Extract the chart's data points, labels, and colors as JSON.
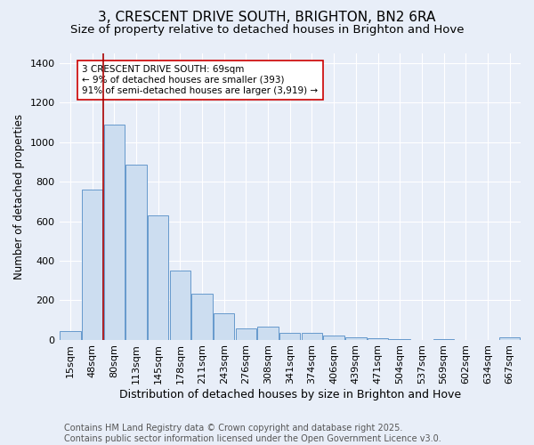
{
  "title": "3, CRESCENT DRIVE SOUTH, BRIGHTON, BN2 6RA",
  "subtitle": "Size of property relative to detached houses in Brighton and Hove",
  "xlabel": "Distribution of detached houses by size in Brighton and Hove",
  "ylabel": "Number of detached properties",
  "categories": [
    "15sqm",
    "48sqm",
    "80sqm",
    "113sqm",
    "145sqm",
    "178sqm",
    "211sqm",
    "243sqm",
    "276sqm",
    "308sqm",
    "341sqm",
    "374sqm",
    "406sqm",
    "439sqm",
    "471sqm",
    "504sqm",
    "537sqm",
    "569sqm",
    "602sqm",
    "634sqm",
    "667sqm"
  ],
  "values": [
    45,
    760,
    1090,
    885,
    630,
    348,
    232,
    135,
    58,
    68,
    35,
    32,
    20,
    10,
    8,
    3,
    0,
    1,
    0,
    0,
    10
  ],
  "bar_color": "#ccddf0",
  "bar_edge_color": "#6699cc",
  "vline_x": 1.5,
  "vline_color": "#aa0000",
  "annotation_text": "3 CRESCENT DRIVE SOUTH: 69sqm\n← 9% of detached houses are smaller (393)\n91% of semi-detached houses are larger (3,919) →",
  "annotation_box_color": "#ffffff",
  "annotation_box_edge": "#cc0000",
  "ylim": [
    0,
    1450
  ],
  "yticks": [
    0,
    200,
    400,
    600,
    800,
    1000,
    1200,
    1400
  ],
  "bg_color": "#e8eef8",
  "grid_color": "#d0d8e8",
  "footer": "Contains HM Land Registry data © Crown copyright and database right 2025.\nContains public sector information licensed under the Open Government Licence v3.0.",
  "title_fontsize": 11,
  "subtitle_fontsize": 9.5,
  "xlabel_fontsize": 9,
  "ylabel_fontsize": 8.5,
  "tick_fontsize": 8,
  "annotation_fontsize": 7.5,
  "footer_fontsize": 7
}
